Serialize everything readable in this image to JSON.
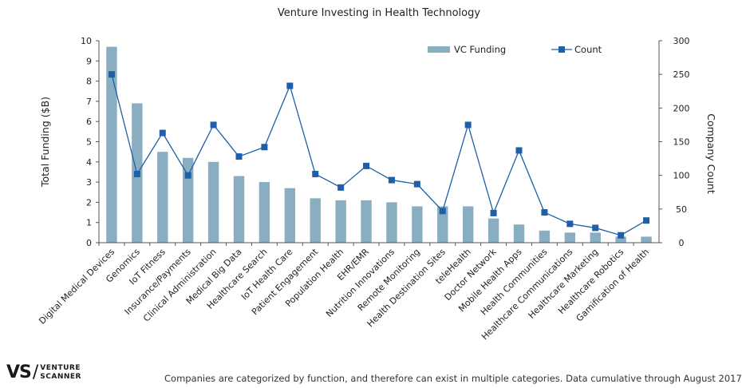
{
  "chart_data": {
    "type": "bar",
    "title": "Venture Investing in Health Technology",
    "ylabel": "Total Funding ($B)",
    "y2label": "Company Count",
    "ylim": [
      0,
      10
    ],
    "y2lim": [
      0,
      300
    ],
    "yticks": [
      "0",
      "1",
      "2",
      "3",
      "4",
      "5",
      "6",
      "7",
      "8",
      "9",
      "10"
    ],
    "y2ticks": [
      "0",
      "50",
      "100",
      "150",
      "200",
      "250",
      "300"
    ],
    "categories": [
      "Digital Medical Devices",
      "Genomics",
      "IoT Fitness",
      "Insurance/Payments",
      "Clinical Administration",
      "Medical Big Data",
      "Healthcare Search",
      "IoT Health Care",
      "Patient Engagement",
      "Population Health",
      "EHR/EMR",
      "Nutrition Innovations",
      "Remote Monitoring",
      "Health Destination Sites",
      "teleHealth",
      "Doctor Network",
      "Mobile Health Apps",
      "Health Communities",
      "Healthcare Communications",
      "Healthcare Marketing",
      "Healthcare Robotics",
      "Gamification of Health"
    ],
    "series": [
      {
        "name": "VC Funding",
        "type": "bar",
        "axis": "left",
        "color": "#89aec2",
        "values": [
          9.7,
          6.9,
          4.5,
          4.2,
          4.0,
          3.3,
          3.0,
          2.7,
          2.2,
          2.1,
          2.1,
          2.0,
          1.8,
          1.8,
          1.8,
          1.2,
          0.9,
          0.6,
          0.5,
          0.5,
          0.3,
          0.3
        ]
      },
      {
        "name": "Count",
        "type": "line",
        "axis": "right",
        "color": "#1f5fa8",
        "values": [
          250,
          102,
          163,
          100,
          175,
          128,
          142,
          233,
          102,
          82,
          114,
          93,
          87,
          47,
          175,
          44,
          137,
          45,
          28,
          22,
          11,
          33
        ]
      }
    ],
    "legend": "top-right",
    "grid": false
  },
  "footnote": "Companies are categorized by function, and therefore can exist in multiple categories. Data cumulative through August 2017",
  "logo": {
    "mark": "VS",
    "slash": "/",
    "line1": "VENTURE",
    "line2": "SCANNER"
  }
}
